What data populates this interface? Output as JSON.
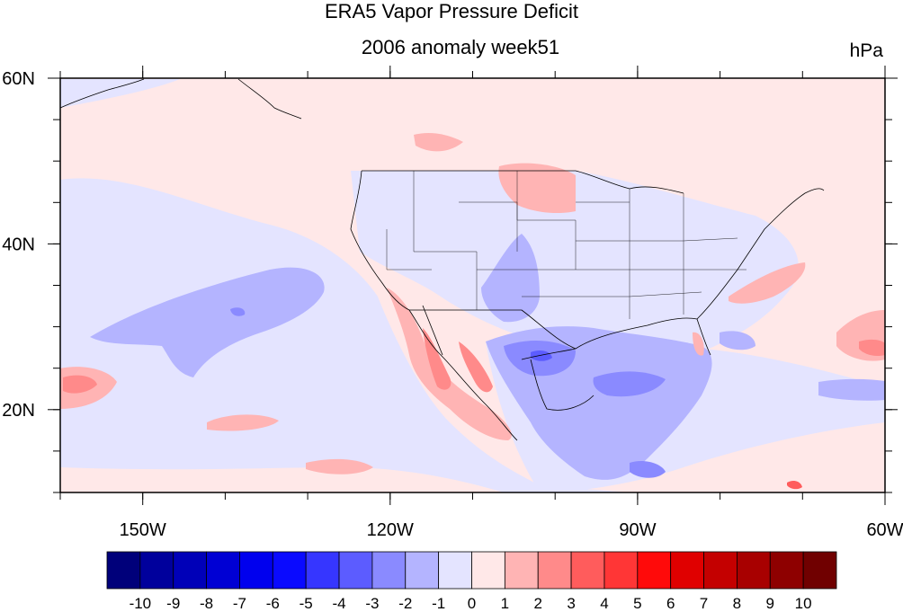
{
  "title": "ERA5 Vapor Pressure Deficit",
  "subtitle": "2006 anomaly week51",
  "units": "hPa",
  "map": {
    "lon_range": [
      -160,
      -60
    ],
    "lat_range": [
      10,
      60
    ],
    "lon_ticks": [
      {
        "lon": -150,
        "label": "150W"
      },
      {
        "lon": -120,
        "label": "120W"
      },
      {
        "lon": -90,
        "label": "90W"
      },
      {
        "lon": -60,
        "label": "60W"
      }
    ],
    "lat_ticks": [
      {
        "lat": 20,
        "label": "20N"
      },
      {
        "lat": 40,
        "label": "40N"
      },
      {
        "lat": 60,
        "label": "60N"
      }
    ],
    "background_color": "#ffe8e8"
  },
  "colorbar": {
    "colors": [
      "#00007a",
      "#00009c",
      "#0000b8",
      "#0000d4",
      "#0000ee",
      "#0a0aff",
      "#3636ff",
      "#5c5cff",
      "#8a8aff",
      "#b4b4ff",
      "#e4e4ff",
      "#ffe8e8",
      "#ffb4b4",
      "#ff8a8a",
      "#ff5c5c",
      "#ff3636",
      "#ff0a0a",
      "#e00000",
      "#c40000",
      "#a80000",
      "#8e0000",
      "#700000"
    ],
    "labels": [
      "-10",
      "-9",
      "-8",
      "-7",
      "-6",
      "-5",
      "-4",
      "-3",
      "-2",
      "-1",
      "0",
      "1",
      "2",
      "3",
      "4",
      "5",
      "6",
      "7",
      "8",
      "9",
      "10"
    ]
  }
}
